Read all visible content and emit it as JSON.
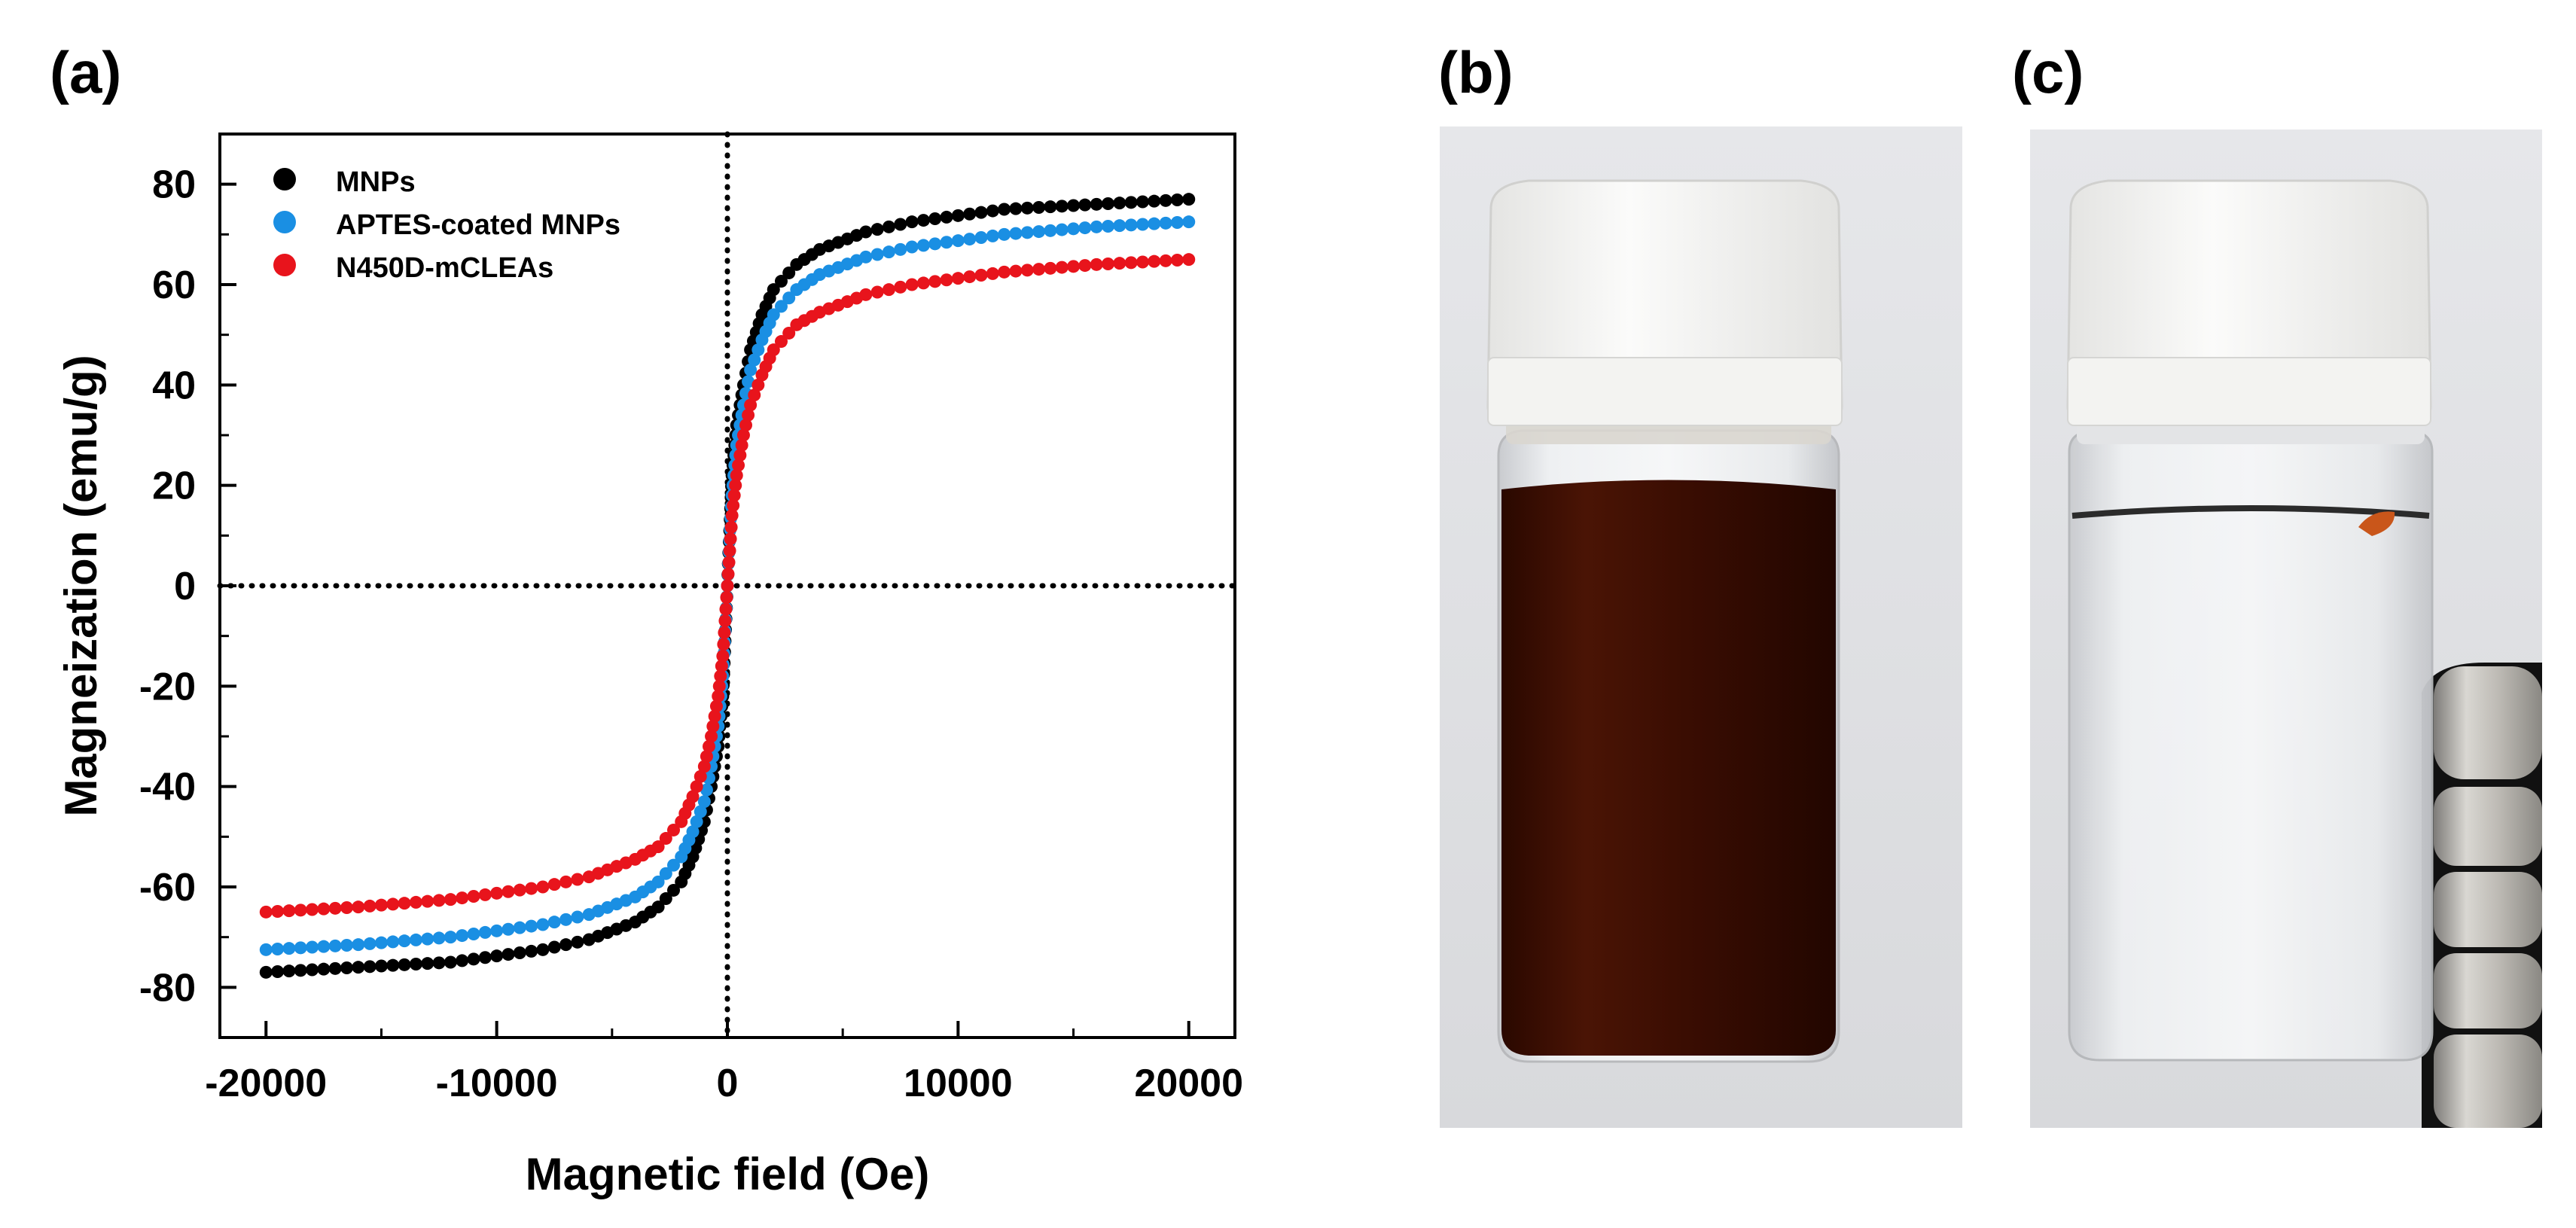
{
  "panels": {
    "a": {
      "label": "(a)"
    },
    "b": {
      "label": "(b)",
      "description_icon": "vial-brown-suspension"
    },
    "c": {
      "label": "(c)",
      "description_icon": "vial-clear-with-magnets"
    }
  },
  "colors": {
    "mnps": "#000000",
    "aptes": "#1a8fe3",
    "mcleas": "#e8141c",
    "dark_suspension": "#3a0d02",
    "cap": "#f6f6f4",
    "photo_bg": "#dcdde0"
  },
  "chart_data": {
    "type": "scatter",
    "title": "",
    "xlabel": "Magnetic field (Oe)",
    "ylabel": "Magneization (emu/g)",
    "xlim": [
      -22000,
      22000
    ],
    "ylim": [
      -90,
      90
    ],
    "xticks": [
      -20000,
      -10000,
      0,
      10000,
      20000
    ],
    "xtick_labels": [
      "-20000",
      "-10000",
      "0",
      "10000",
      "20000"
    ],
    "yticks": [
      -80,
      -60,
      -40,
      -20,
      0,
      20,
      40,
      60,
      80
    ],
    "ytick_labels": [
      "-80",
      "-60",
      "-40",
      "-20",
      "0",
      "20",
      "40",
      "60",
      "80"
    ],
    "reference_lines": {
      "x": 0,
      "y": 0,
      "style": "dotted"
    },
    "legend_position": "top-left",
    "series": [
      {
        "name": "MNPs",
        "color": "#000000",
        "x": [
          -20000,
          -16000,
          -12000,
          -8000,
          -6000,
          -4000,
          -3000,
          -2000,
          -1500,
          -1000,
          -700,
          -400,
          -200,
          0,
          200,
          400,
          700,
          1000,
          1500,
          2000,
          3000,
          4000,
          6000,
          8000,
          12000,
          16000,
          20000
        ],
        "y": [
          -77,
          -76,
          -75,
          -72.5,
          -70.5,
          -67,
          -64,
          -59,
          -54,
          -47,
          -40,
          -32,
          -22,
          0,
          22,
          32,
          40,
          47,
          54,
          59,
          64,
          67,
          70.5,
          72.5,
          75,
          76,
          77
        ]
      },
      {
        "name": "APTES-coated MNPs",
        "color": "#1a8fe3",
        "x": [
          -20000,
          -16000,
          -12000,
          -8000,
          -6000,
          -4000,
          -3000,
          -2000,
          -1500,
          -1000,
          -700,
          -400,
          -200,
          0,
          200,
          400,
          700,
          1000,
          1500,
          2000,
          3000,
          4000,
          6000,
          8000,
          12000,
          16000,
          20000
        ],
        "y": [
          -72.5,
          -71.5,
          -70,
          -67.5,
          -65.5,
          -62,
          -59,
          -54,
          -49,
          -43,
          -36,
          -28,
          -18,
          0,
          18,
          28,
          36,
          43,
          49,
          54,
          59,
          62,
          65.5,
          67.5,
          70,
          71.5,
          72.5
        ]
      },
      {
        "name": "N450D-mCLEAs",
        "color": "#e8141c",
        "x": [
          -20000,
          -16000,
          -12000,
          -8000,
          -6000,
          -4000,
          -3000,
          -2000,
          -1500,
          -1000,
          -700,
          -400,
          -200,
          0,
          200,
          400,
          700,
          1000,
          1500,
          2000,
          3000,
          4000,
          6000,
          8000,
          12000,
          16000,
          20000
        ],
        "y": [
          -65,
          -64,
          -62.5,
          -60,
          -58,
          -54.5,
          -52,
          -47,
          -42,
          -36,
          -30,
          -22,
          -14,
          0,
          14,
          22,
          30,
          36,
          42,
          47,
          52,
          54.5,
          58,
          60,
          62.5,
          64,
          65
        ]
      }
    ]
  }
}
